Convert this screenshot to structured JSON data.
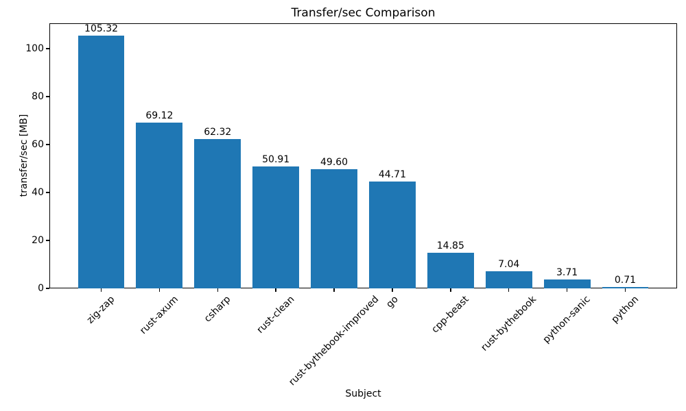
{
  "chart_data": {
    "type": "bar",
    "title": "Transfer/sec Comparison",
    "xlabel": "Subject",
    "ylabel": "transfer/sec [MB]",
    "categories": [
      "zig-zap",
      "rust-axum",
      "csharp",
      "rust-clean",
      "rust-bythebook-improved",
      "go",
      "cpp-beast",
      "rust-bythebook",
      "python-sanic",
      "python"
    ],
    "values": [
      105.32,
      69.12,
      62.32,
      50.91,
      49.6,
      44.71,
      14.85,
      7.04,
      3.71,
      0.71
    ],
    "value_labels": [
      "105.32",
      "69.12",
      "62.32",
      "50.91",
      "49.60",
      "44.71",
      "14.85",
      "7.04",
      "3.71",
      "0.71"
    ],
    "yticks": [
      0,
      20,
      40,
      60,
      80,
      100
    ],
    "ylim": [
      0,
      110.59
    ],
    "bar_color": "#1f77b4",
    "text_color": "#000000",
    "grid": false,
    "x_tick_rotation_deg": 45,
    "legend_position": "none"
  }
}
